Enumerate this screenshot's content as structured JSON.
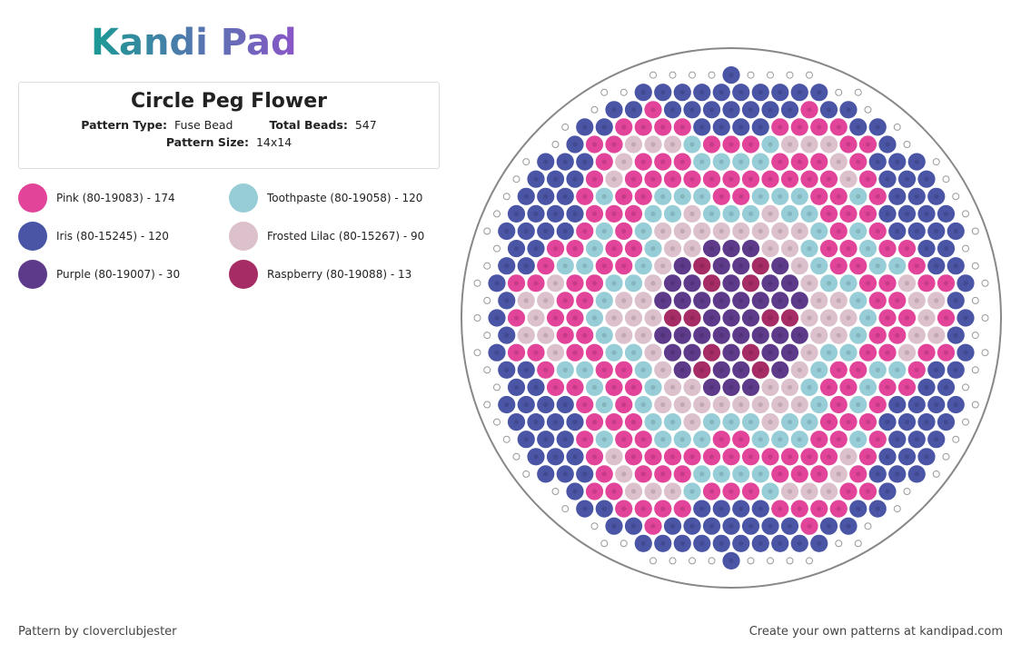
{
  "header": {
    "logo": "Kandi Pad"
  },
  "info": {
    "title": "Circle Peg Flower",
    "type_label": "Pattern Type:",
    "type_value": "Fuse Bead",
    "beads_label": "Total Beads:",
    "beads_value": "547",
    "size_label": "Pattern Size:",
    "size_value": "14x14"
  },
  "legend": [
    {
      "label": "Pink (80-19083) - 174",
      "color": "#e2449a"
    },
    {
      "label": "Toothpaste (80-19058) - 120",
      "color": "#97cdd6"
    },
    {
      "label": "Iris (80-15245) - 120",
      "color": "#4a55a5"
    },
    {
      "label": "Frosted Lilac (80-15267) - 90",
      "color": "#dcc0cc"
    },
    {
      "label": "Purple (80-19007) - 30",
      "color": "#5e3b8a"
    },
    {
      "label": "Raspberry (80-19088) - 13",
      "color": "#a52c64"
    }
  ],
  "footer": {
    "credit": "Pattern by cloverclubjester",
    "promo": "Create your own patterns at kandipad.com"
  }
}
